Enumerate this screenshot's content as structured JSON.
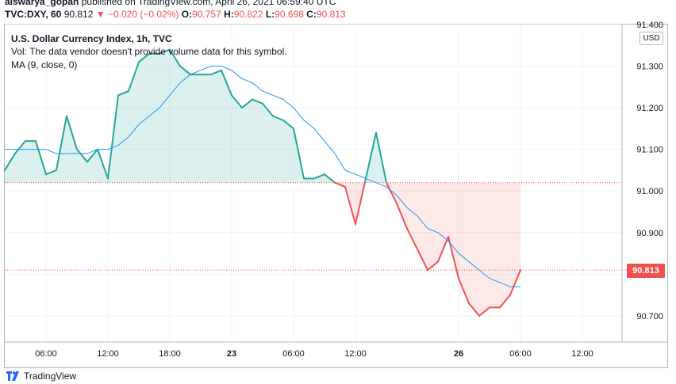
{
  "header": {
    "author": "aiswarya_gopan",
    "published_text": "published on TradingView.com, April 26, 2021 06:59:40 UTC"
  },
  "quote": {
    "symbol": "TVC:DXY, 60",
    "last": "90.812",
    "change_arrow": "▼",
    "change": "−0.020 (−0.02%)",
    "open_label": "O:",
    "open": "90.757",
    "high_label": "H:",
    "high": "90.822",
    "low_label": "L:",
    "low": "90.698",
    "close_label": "C:",
    "close": "90.813"
  },
  "legend": {
    "title": "U.S. Dollar Currency Index, 1h, TVC",
    "vol": "Vol: The data vendor doesn't provide volume data for this symbol.",
    "ma": "MA (9, close, 0)"
  },
  "axis": {
    "currency": "USD",
    "last_price_tag": "90.813"
  },
  "footer": {
    "brand": "TradingView",
    "logo_icon": "tradingview-logo-icon"
  },
  "colors": {
    "up": "#26a69a",
    "down": "#ef5350",
    "ma": "#2196f3",
    "grid": "#f0f3fa"
  },
  "chart_data": {
    "type": "area",
    "title": "U.S. Dollar Currency Index, 1h, TVC",
    "baseline": 91.02,
    "ylim": [
      90.637,
      91.4
    ],
    "y_ticks": [
      "91.400",
      "91.300",
      "91.200",
      "91.100",
      "91.000",
      "90.900",
      "90.800",
      "90.700"
    ],
    "x_ticks": [
      "06:00",
      "12:00",
      "18:00",
      "23",
      "06:00",
      "12:00",
      "26",
      "06:00",
      "12:00"
    ],
    "x_tick_bold": [
      false,
      false,
      false,
      true,
      false,
      false,
      true,
      false,
      false
    ],
    "x_range": [
      0,
      51
    ],
    "x_ticks_at": [
      4,
      10,
      16,
      22,
      28,
      34,
      44,
      50,
      56
    ],
    "series": [
      {
        "name": "DXY close",
        "values": [
          91.05,
          91.09,
          91.12,
          91.12,
          91.04,
          91.05,
          91.18,
          91.1,
          91.07,
          91.1,
          91.03,
          91.23,
          91.24,
          91.31,
          91.33,
          91.33,
          91.34,
          91.3,
          91.28,
          91.28,
          91.28,
          91.29,
          91.23,
          91.2,
          91.22,
          91.21,
          91.18,
          91.17,
          91.15,
          91.03,
          91.03,
          91.04,
          91.02,
          91.01,
          90.92,
          91.03,
          91.14,
          91.02,
          90.97,
          90.91,
          90.86,
          90.81,
          90.83,
          90.89,
          90.79,
          90.73,
          90.7,
          90.72,
          90.72,
          90.75,
          90.81
        ]
      },
      {
        "name": "MA (9, close, 0)",
        "values": [
          91.1,
          91.1,
          91.1,
          91.1,
          91.1,
          91.09,
          91.09,
          91.09,
          91.09,
          91.1,
          91.1,
          91.11,
          91.13,
          91.16,
          91.18,
          91.2,
          91.23,
          91.26,
          91.28,
          91.29,
          91.3,
          91.3,
          91.29,
          91.27,
          91.26,
          91.24,
          91.23,
          91.22,
          91.2,
          91.17,
          91.15,
          91.12,
          91.09,
          91.05,
          91.04,
          91.03,
          91.02,
          91.01,
          90.99,
          90.96,
          90.94,
          90.91,
          90.9,
          90.88,
          90.85,
          90.83,
          90.81,
          90.79,
          90.78,
          90.77,
          90.77
        ]
      }
    ]
  }
}
